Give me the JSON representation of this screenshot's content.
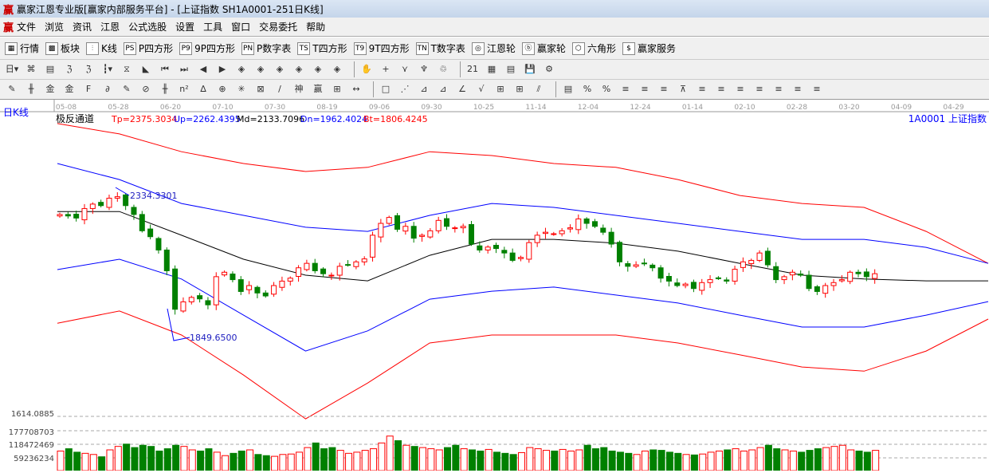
{
  "window": {
    "title": "赢家江恩专业版[赢家内部服务平台] - [上证指数  SH1A0001-251日K线]",
    "logo": "赢"
  },
  "menu": [
    "文件",
    "浏览",
    "资讯",
    "江恩",
    "公式选股",
    "设置",
    "工具",
    "窗口",
    "交易委托",
    "帮助"
  ],
  "toolbar1": [
    {
      "icon": "grid-icon",
      "glyph": "▦",
      "label": "行情"
    },
    {
      "icon": "blocks-icon",
      "glyph": "▩",
      "label": "板块"
    },
    {
      "icon": "candles-icon",
      "glyph": "⫶",
      "label": "K线"
    },
    {
      "icon": "ps-icon",
      "glyph": "PS",
      "label": "P四方形"
    },
    {
      "icon": "p9-icon",
      "glyph": "P9",
      "label": "9P四方形"
    },
    {
      "icon": "pn-icon",
      "glyph": "PN",
      "label": "P数字表"
    },
    {
      "icon": "ts-icon",
      "glyph": "TS",
      "label": "T四方形"
    },
    {
      "icon": "t9-icon",
      "glyph": "T9",
      "label": "9T四方形"
    },
    {
      "icon": "tn-icon",
      "glyph": "TN",
      "label": "T数字表"
    },
    {
      "icon": "gann-wheel-icon",
      "glyph": "◎",
      "label": "江恩轮"
    },
    {
      "icon": "big-wheel-icon",
      "glyph": "ⓑ",
      "label": "赢家轮"
    },
    {
      "icon": "hexagon-icon",
      "glyph": "⬡",
      "label": "六角形"
    },
    {
      "icon": "dollar-icon",
      "glyph": "$",
      "label": "赢家服务"
    }
  ],
  "toolbar2": [
    "日▾",
    "⌘",
    "▤",
    "ℨ",
    "ℨ",
    "┇▾",
    "⧖",
    "◣",
    "⏮",
    "⏭",
    "◀",
    "▶",
    "◈",
    "◈",
    "◈",
    "◈",
    "◈",
    "◈",
    "|",
    "✋",
    "+",
    "⋎",
    "♆",
    "♲",
    "|",
    "21",
    "▦",
    "▤",
    "💾",
    "⚙"
  ],
  "toolbar3": [
    "✎",
    "╫",
    "金",
    "金",
    "F",
    "∂",
    "✎",
    "⊘",
    "╫",
    "n²",
    "∆",
    "⊕",
    "✳",
    "⊠",
    "/",
    "神",
    "赢",
    "⊞",
    "↔",
    "|",
    "□",
    "⋰",
    "⊿",
    "⊿",
    "∠",
    "√",
    "⊞",
    "⊞",
    "⫽",
    "|",
    "▤",
    "%",
    "%",
    "≡",
    "≡",
    "≡",
    "⊼",
    "≡",
    "≡",
    "≡",
    "≡",
    "≡",
    "≡",
    "≡"
  ],
  "chart": {
    "period_label": "日K线",
    "dates": [
      "05-08",
      "05-28",
      "06-20",
      "07-10",
      "07-30",
      "08-19",
      "09-06",
      "09-30",
      "10-25",
      "11-14",
      "12-04",
      "12-24",
      "01-14",
      "02-10",
      "02-28",
      "03-20",
      "04-09",
      "04-29"
    ],
    "indicator": {
      "name": "极反通道",
      "tp": "Tp=2375.3034",
      "up": "Up=2262.4395",
      "md": "Md=2133.7096",
      "dn": "Dn=1962.4024",
      "bt": "Bt=1806.4245"
    },
    "symbol": "1A0001  上证指数",
    "high_label": "2334.3301",
    "low_label": "1849.6500",
    "volume_axis": [
      "1614.0885",
      "177708703",
      "118472469",
      "59236234"
    ],
    "colors": {
      "up": "#ff0000",
      "down": "#008000",
      "tp": "#ff0000",
      "up_band": "#0000ff",
      "md": "#000000",
      "dn": "#0000ff",
      "bt": "#ff0000"
    }
  },
  "chart_data": {
    "type": "candlestick",
    "price_range": [
      1560,
      2600
    ],
    "high": 2334.3301,
    "low": 1849.65,
    "closes": [
      2270,
      2265,
      2258,
      2290,
      2305,
      2300,
      2325,
      2330,
      2300,
      2270,
      2215,
      2195,
      2150,
      2080,
      1950,
      1975,
      1990,
      1985,
      1965,
      2060,
      2075,
      2050,
      2010,
      2030,
      2005,
      1995,
      2030,
      2045,
      2055,
      2090,
      2105,
      2080,
      2070,
      2065,
      2095,
      2100,
      2110,
      2120,
      2200,
      2240,
      2260,
      2220,
      2230,
      2190,
      2200,
      2215,
      2250,
      2230,
      2225,
      2230,
      2170,
      2150,
      2160,
      2155,
      2140,
      2115,
      2125,
      2175,
      2200,
      2210,
      2205,
      2215,
      2225,
      2255,
      2240,
      2230,
      2210,
      2170,
      2110,
      2095,
      2100,
      2105,
      2090,
      2055,
      2045,
      2030,
      2035,
      2020,
      2040,
      2050,
      2055,
      2045,
      2085,
      2110,
      2115,
      2140,
      2100,
      2050,
      2060,
      2075,
      2065,
      2020,
      2010,
      2030,
      2040,
      2050,
      2075,
      2070,
      2060,
      2070
    ],
    "volumes": [
      85,
      95,
      80,
      75,
      70,
      60,
      90,
      105,
      115,
      100,
      110,
      105,
      85,
      95,
      110,
      105,
      90,
      85,
      95,
      80,
      65,
      75,
      85,
      90,
      70,
      65,
      62,
      70,
      72,
      80,
      100,
      120,
      95,
      100,
      88,
      75,
      80,
      88,
      95,
      120,
      150,
      130,
      110,
      105,
      100,
      95,
      90,
      100,
      110,
      95,
      90,
      85,
      92,
      80,
      75,
      70,
      78,
      100,
      95,
      88,
      85,
      92,
      85,
      90,
      110,
      95,
      100,
      85,
      80,
      75,
      70,
      85,
      90,
      88,
      80,
      75,
      70,
      68,
      72,
      80,
      85,
      90,
      95,
      85,
      90,
      100,
      110,
      95,
      90,
      85,
      80,
      88,
      95,
      100,
      105,
      110,
      90,
      85,
      80,
      88
    ],
    "bands": {
      "tp": [
        2577,
        2542,
        2482,
        2442,
        2415,
        2429,
        2482,
        2469,
        2442,
        2429,
        2388,
        2334,
        2307,
        2294,
        2213,
        2105
      ],
      "up": [
        2442,
        2388,
        2307,
        2267,
        2227,
        2213,
        2267,
        2307,
        2294,
        2267,
        2240,
        2213,
        2186,
        2186,
        2159,
        2105
      ],
      "md": [
        2280,
        2280,
        2200,
        2119,
        2065,
        2046,
        2132,
        2186,
        2186,
        2173,
        2146,
        2105,
        2065,
        2052,
        2046,
        2046
      ],
      "dn": [
        2084,
        2119,
        2052,
        1930,
        1809,
        1877,
        1984,
        2011,
        2025,
        1998,
        1971,
        1930,
        1890,
        1890,
        1930,
        1976
      ],
      "bt": [
        1903,
        1944,
        1863,
        1728,
        1580,
        1701,
        1836,
        1863,
        1863,
        1863,
        1836,
        1796,
        1755,
        1741,
        1809,
        1917
      ]
    }
  }
}
